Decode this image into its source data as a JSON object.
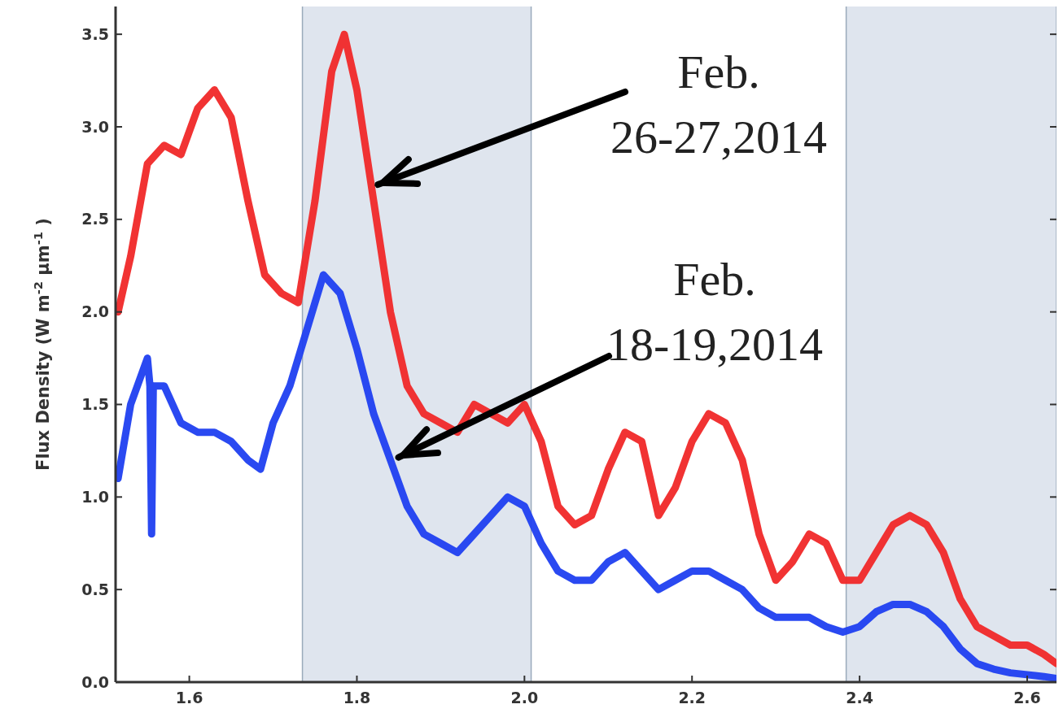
{
  "chart_data": {
    "type": "line",
    "ylabel": "Flux Density (W m$^{-2}$ μm$^{-1}$)",
    "xlim": [
      1.512,
      2.635
    ],
    "ylim": [
      0,
      3.65
    ],
    "xticks": [
      1.6,
      1.8,
      {
        "value": 2.0,
        "label": "2.0"
      },
      2.2,
      2.4,
      2.6
    ],
    "yticks": [
      {
        "value": 0,
        "label": "0.0"
      },
      0.5,
      {
        "value": 1,
        "label": "1.0"
      },
      1.5,
      {
        "value": 2,
        "label": "2.0"
      },
      2.5,
      {
        "value": 3,
        "label": "3.0"
      },
      3.5
    ],
    "grid": false,
    "line_style": "solid",
    "bands": [
      {
        "axis": "x",
        "from": 1.735,
        "to": 2.008,
        "color": "#dfe5ee"
      },
      {
        "axis": "x",
        "from": 2.384,
        "to": 2.635,
        "color": "#dfe5ee"
      }
    ],
    "annotations": [
      "Feb. 26-27,2014",
      "Feb. 18-19,2014"
    ],
    "series": [
      {
        "color": "#f02828",
        "x": [
          1.515,
          1.53,
          1.55,
          1.57,
          1.59,
          1.61,
          1.63,
          1.65,
          1.67,
          1.69,
          1.71,
          1.73,
          1.75,
          1.77,
          1.785,
          1.8,
          1.82,
          1.84,
          1.86,
          1.88,
          1.9,
          1.92,
          1.94,
          1.96,
          1.98,
          2.0,
          2.02,
          2.04,
          2.06,
          2.08,
          2.1,
          2.12,
          2.14,
          2.16,
          2.18,
          2.2,
          2.22,
          2.24,
          2.26,
          2.28,
          2.3,
          2.32,
          2.34,
          2.36,
          2.38,
          2.4,
          2.42,
          2.44,
          2.46,
          2.48,
          2.5,
          2.52,
          2.54,
          2.56,
          2.58,
          2.6,
          2.62,
          2.635
        ],
        "values": [
          2.0,
          2.3,
          2.8,
          2.9,
          2.85,
          3.1,
          3.2,
          3.05,
          2.6,
          2.2,
          2.1,
          2.05,
          2.6,
          3.3,
          3.5,
          3.2,
          2.6,
          2.0,
          1.6,
          1.45,
          1.4,
          1.35,
          1.5,
          1.45,
          1.4,
          1.5,
          1.3,
          0.95,
          0.85,
          0.9,
          1.15,
          1.35,
          1.3,
          0.9,
          1.05,
          1.3,
          1.45,
          1.4,
          1.2,
          0.8,
          0.55,
          0.65,
          0.8,
          0.75,
          0.55,
          0.55,
          0.7,
          0.85,
          0.9,
          0.85,
          0.7,
          0.45,
          0.3,
          0.25,
          0.2,
          0.2,
          0.15,
          0.1
        ]
      },
      {
        "color": "#1f3ff0",
        "x": [
          1.515,
          1.53,
          1.55,
          1.553,
          1.555,
          1.557,
          1.57,
          1.59,
          1.61,
          1.63,
          1.65,
          1.67,
          1.685,
          1.7,
          1.72,
          1.74,
          1.76,
          1.78,
          1.8,
          1.82,
          1.84,
          1.86,
          1.88,
          1.9,
          1.92,
          1.94,
          1.96,
          1.98,
          2.0,
          2.02,
          2.04,
          2.06,
          2.08,
          2.1,
          2.12,
          2.14,
          2.16,
          2.18,
          2.2,
          2.22,
          2.24,
          2.26,
          2.28,
          2.3,
          2.32,
          2.34,
          2.36,
          2.38,
          2.4,
          2.42,
          2.44,
          2.46,
          2.48,
          2.5,
          2.52,
          2.54,
          2.56,
          2.58,
          2.6,
          2.62,
          2.635
        ],
        "values": [
          1.1,
          1.5,
          1.75,
          1.6,
          0.8,
          1.6,
          1.6,
          1.4,
          1.35,
          1.35,
          1.3,
          1.2,
          1.15,
          1.4,
          1.6,
          1.9,
          2.2,
          2.1,
          1.8,
          1.45,
          1.2,
          0.95,
          0.8,
          0.75,
          0.7,
          0.8,
          0.9,
          1.0,
          0.95,
          0.75,
          0.6,
          0.55,
          0.55,
          0.65,
          0.7,
          0.6,
          0.5,
          0.55,
          0.6,
          0.6,
          0.55,
          0.5,
          0.4,
          0.35,
          0.35,
          0.35,
          0.3,
          0.27,
          0.3,
          0.38,
          0.42,
          0.42,
          0.38,
          0.3,
          0.18,
          0.1,
          0.07,
          0.05,
          0.04,
          0.03,
          0.02
        ]
      }
    ]
  }
}
